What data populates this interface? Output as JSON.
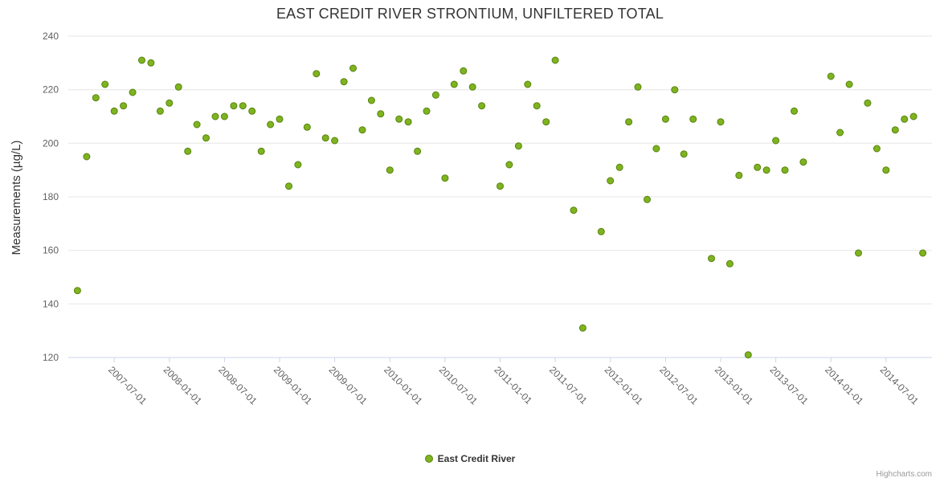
{
  "credits": "Highcharts.com",
  "chart_data": {
    "type": "scatter",
    "title": "EAST CREDIT RIVER STRONTIUM, UNFILTERED TOTAL",
    "xlabel": "",
    "ylabel": "Measurements (µg/L)",
    "ylim": [
      120,
      240
    ],
    "y_ticks": [
      120,
      140,
      160,
      180,
      200,
      220,
      240
    ],
    "x_tick_labels": [
      "2007-07-01",
      "2008-01-01",
      "2008-07-01",
      "2009-01-01",
      "2009-07-01",
      "2010-01-01",
      "2010-07-01",
      "2011-01-01",
      "2011-07-01",
      "2012-01-01",
      "2012-07-01",
      "2013-01-01",
      "2013-07-01",
      "2014-01-01",
      "2014-07-01"
    ],
    "grid": "horizontal",
    "legend_position": "bottom-center",
    "colors": {
      "point_fill": "#7db41f",
      "point_stroke": "#5a820f",
      "gridline": "#e6e6e6",
      "axis_line": "#ccd6eb",
      "axis_label": "#606060"
    },
    "series": [
      {
        "name": "East Credit River",
        "color": "#7db41f",
        "stroke_color": "#5a820f",
        "points": [
          [
            "2007-03",
            145
          ],
          [
            "2007-04",
            195
          ],
          [
            "2007-05",
            217
          ],
          [
            "2007-06",
            222
          ],
          [
            "2007-07",
            212
          ],
          [
            "2007-08",
            214
          ],
          [
            "2007-09",
            219
          ],
          [
            "2007-10",
            231
          ],
          [
            "2007-11",
            230
          ],
          [
            "2007-12",
            212
          ],
          [
            "2008-01",
            215
          ],
          [
            "2008-02",
            221
          ],
          [
            "2008-03",
            197
          ],
          [
            "2008-04",
            207
          ],
          [
            "2008-05",
            202
          ],
          [
            "2008-06",
            210
          ],
          [
            "2008-07",
            210
          ],
          [
            "2008-08",
            214
          ],
          [
            "2008-09",
            214
          ],
          [
            "2008-10",
            212
          ],
          [
            "2008-11",
            197
          ],
          [
            "2008-12",
            207
          ],
          [
            "2009-01",
            209
          ],
          [
            "2009-02",
            184
          ],
          [
            "2009-03",
            192
          ],
          [
            "2009-04",
            206
          ],
          [
            "2009-05",
            226
          ],
          [
            "2009-06",
            202
          ],
          [
            "2009-07",
            201
          ],
          [
            "2009-08",
            223
          ],
          [
            "2009-09",
            228
          ],
          [
            "2009-10",
            205
          ],
          [
            "2009-11",
            216
          ],
          [
            "2009-12",
            211
          ],
          [
            "2010-01",
            190
          ],
          [
            "2010-02",
            209
          ],
          [
            "2010-03",
            208
          ],
          [
            "2010-04",
            197
          ],
          [
            "2010-05",
            212
          ],
          [
            "2010-06",
            218
          ],
          [
            "2010-07",
            187
          ],
          [
            "2010-08",
            222
          ],
          [
            "2010-09",
            227
          ],
          [
            "2010-10",
            221
          ],
          [
            "2010-11",
            214
          ],
          [
            "2011-01",
            184
          ],
          [
            "2011-02",
            192
          ],
          [
            "2011-03",
            199
          ],
          [
            "2011-04",
            222
          ],
          [
            "2011-05",
            214
          ],
          [
            "2011-06",
            208
          ],
          [
            "2011-07",
            231
          ],
          [
            "2011-09",
            175
          ],
          [
            "2011-10",
            131
          ],
          [
            "2011-12",
            167
          ],
          [
            "2012-01",
            186
          ],
          [
            "2012-02",
            191
          ],
          [
            "2012-03",
            208
          ],
          [
            "2012-04",
            221
          ],
          [
            "2012-05",
            179
          ],
          [
            "2012-06",
            198
          ],
          [
            "2012-07",
            209
          ],
          [
            "2012-08",
            220
          ],
          [
            "2012-09",
            196
          ],
          [
            "2012-10",
            209
          ],
          [
            "2012-12",
            157
          ],
          [
            "2013-01",
            208
          ],
          [
            "2013-02",
            155
          ],
          [
            "2013-03",
            188
          ],
          [
            "2013-04",
            121
          ],
          [
            "2013-05",
            191
          ],
          [
            "2013-06",
            190
          ],
          [
            "2013-07",
            201
          ],
          [
            "2013-08",
            190
          ],
          [
            "2013-09",
            212
          ],
          [
            "2013-10",
            193
          ],
          [
            "2014-01",
            225
          ],
          [
            "2014-02",
            204
          ],
          [
            "2014-03",
            222
          ],
          [
            "2014-04",
            159
          ],
          [
            "2014-05",
            215
          ],
          [
            "2014-06",
            198
          ],
          [
            "2014-07",
            190
          ],
          [
            "2014-08",
            205
          ],
          [
            "2014-09",
            209
          ],
          [
            "2014-10",
            210
          ],
          [
            "2014-11",
            159
          ]
        ]
      }
    ]
  }
}
